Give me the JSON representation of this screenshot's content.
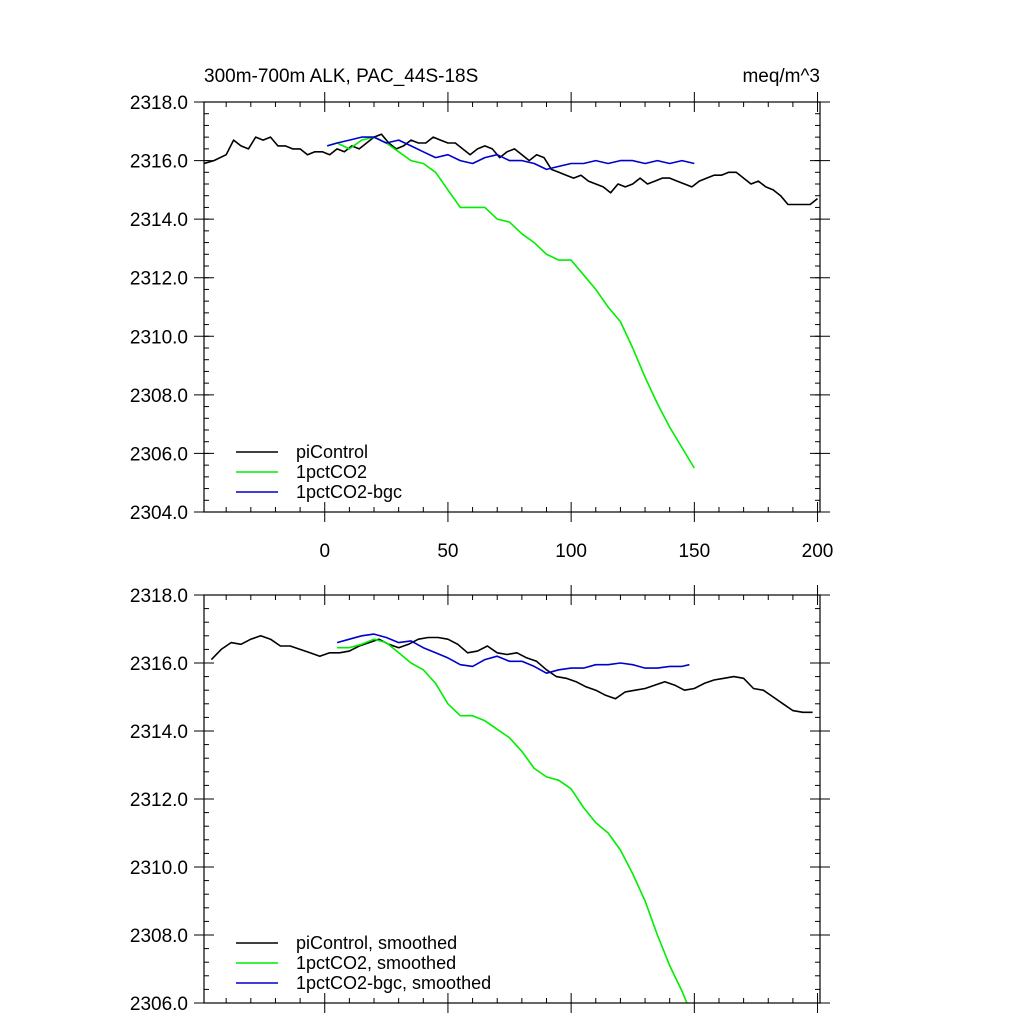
{
  "header": {
    "title": "300m-700m ALK, PAC_44S-18S",
    "units": "meq/m^3"
  },
  "colors": {
    "piControl": "#000000",
    "1pctCO2": "#00ee00",
    "1pctCO2-bgc": "#0000cc"
  },
  "chart_data": [
    {
      "type": "line",
      "title": "300m-700m ALK, PAC_44S-18S",
      "units": "meq/m^3",
      "xlim": [
        -49,
        201
      ],
      "ylim": [
        2304.0,
        2318.0
      ],
      "x_ticks": [
        0,
        50,
        100,
        150,
        200
      ],
      "y_ticks": [
        "2304.0",
        "2306.0",
        "2308.0",
        "2310.0",
        "2312.0",
        "2314.0",
        "2316.0",
        "2318.0"
      ],
      "x_tick_labels": [
        "0",
        "50",
        "100",
        "150",
        "200"
      ],
      "legend": [
        "piControl",
        "1pctCO2",
        "1pctCO2-bgc"
      ],
      "legend_position": "bottom-left",
      "series": [
        {
          "name": "piControl",
          "color": "#000000",
          "x": [
            -49,
            -45,
            -40,
            -37,
            -34,
            -31,
            -28,
            -25,
            -22,
            -19,
            -16,
            -13,
            -10,
            -7,
            -4,
            -1,
            2,
            5,
            8,
            11,
            14,
            17,
            20,
            23,
            26,
            29,
            32,
            35,
            38,
            41,
            44,
            47,
            50,
            53,
            56,
            59,
            62,
            65,
            68,
            71,
            74,
            77,
            80,
            83,
            86,
            89,
            92,
            95,
            98,
            101,
            104,
            107,
            110,
            113,
            116,
            119,
            122,
            125,
            128,
            131,
            134,
            137,
            140,
            143,
            146,
            149,
            152,
            155,
            158,
            161,
            164,
            167,
            170,
            173,
            176,
            179,
            182,
            185,
            188,
            191,
            194,
            197,
            200
          ],
          "y": [
            2315.9,
            2316.0,
            2316.2,
            2316.7,
            2316.5,
            2316.4,
            2316.8,
            2316.7,
            2316.8,
            2316.5,
            2316.5,
            2316.4,
            2316.4,
            2316.2,
            2316.3,
            2316.3,
            2316.2,
            2316.4,
            2316.3,
            2316.5,
            2316.4,
            2316.6,
            2316.8,
            2316.9,
            2316.6,
            2316.4,
            2316.5,
            2316.7,
            2316.6,
            2316.6,
            2316.8,
            2316.7,
            2316.6,
            2316.6,
            2316.4,
            2316.2,
            2316.4,
            2316.5,
            2316.4,
            2316.1,
            2316.3,
            2316.4,
            2316.2,
            2316.0,
            2316.2,
            2316.1,
            2315.7,
            2315.6,
            2315.5,
            2315.4,
            2315.5,
            2315.3,
            2315.2,
            2315.1,
            2314.9,
            2315.2,
            2315.1,
            2315.2,
            2315.4,
            2315.2,
            2315.3,
            2315.4,
            2315.4,
            2315.3,
            2315.2,
            2315.1,
            2315.3,
            2315.4,
            2315.5,
            2315.5,
            2315.6,
            2315.6,
            2315.4,
            2315.2,
            2315.3,
            2315.1,
            2315.0,
            2314.8,
            2314.5,
            2314.5,
            2314.5,
            2314.5,
            2314.7
          ]
        },
        {
          "name": "1pctCO2",
          "color": "#00ee00",
          "x": [
            1,
            5,
            10,
            15,
            20,
            25,
            30,
            35,
            40,
            45,
            50,
            55,
            60,
            65,
            70,
            75,
            80,
            85,
            90,
            95,
            100,
            105,
            110,
            115,
            120,
            125,
            130,
            135,
            140,
            145,
            150
          ],
          "y": [
            2316.5,
            2316.6,
            2316.4,
            2316.7,
            2316.8,
            2316.6,
            2316.3,
            2316.0,
            2315.9,
            2315.6,
            2315.0,
            2314.4,
            2314.4,
            2314.4,
            2314.0,
            2313.9,
            2313.5,
            2313.2,
            2312.8,
            2312.6,
            2312.6,
            2312.1,
            2311.6,
            2311.0,
            2310.5,
            2309.6,
            2308.6,
            2307.7,
            2306.9,
            2306.2,
            2305.5
          ]
        },
        {
          "name": "1pctCO2-bgc",
          "color": "#0000cc",
          "x": [
            1,
            5,
            10,
            15,
            20,
            25,
            30,
            35,
            40,
            45,
            50,
            55,
            60,
            65,
            70,
            75,
            80,
            85,
            90,
            95,
            100,
            105,
            110,
            115,
            120,
            125,
            130,
            135,
            140,
            145,
            150
          ],
          "y": [
            2316.5,
            2316.6,
            2316.7,
            2316.8,
            2316.8,
            2316.6,
            2316.7,
            2316.5,
            2316.3,
            2316.1,
            2316.2,
            2316.0,
            2315.9,
            2316.1,
            2316.2,
            2316.0,
            2316.0,
            2315.9,
            2315.7,
            2315.8,
            2315.9,
            2315.9,
            2316.0,
            2315.9,
            2316.0,
            2316.0,
            2315.9,
            2316.0,
            2315.9,
            2316.0,
            2315.9
          ]
        }
      ]
    },
    {
      "type": "line",
      "xlim": [
        -49,
        201
      ],
      "ylim": [
        2306.0,
        2318.0
      ],
      "x_ticks": [
        0,
        50,
        100,
        150,
        200
      ],
      "y_ticks": [
        "2306.0",
        "2308.0",
        "2310.0",
        "2312.0",
        "2314.0",
        "2316.0",
        "2318.0"
      ],
      "legend": [
        "piControl, smoothed",
        "1pctCO2, smoothed",
        "1pctCO2-bgc, smoothed"
      ],
      "legend_position": "bottom-left",
      "series": [
        {
          "name": "piControl, smoothed",
          "color": "#000000",
          "x": [
            -46,
            -42,
            -38,
            -34,
            -30,
            -26,
            -22,
            -18,
            -14,
            -10,
            -6,
            -2,
            2,
            6,
            10,
            14,
            18,
            22,
            26,
            30,
            34,
            38,
            42,
            46,
            50,
            54,
            58,
            62,
            66,
            70,
            74,
            78,
            82,
            86,
            90,
            94,
            98,
            102,
            106,
            110,
            114,
            118,
            122,
            126,
            130,
            134,
            138,
            142,
            146,
            150,
            154,
            158,
            162,
            166,
            170,
            174,
            178,
            182,
            186,
            190,
            194,
            198
          ],
          "y": [
            2316.1,
            2316.4,
            2316.6,
            2316.55,
            2316.7,
            2316.8,
            2316.7,
            2316.5,
            2316.5,
            2316.4,
            2316.3,
            2316.2,
            2316.3,
            2316.3,
            2316.35,
            2316.5,
            2316.6,
            2316.7,
            2316.55,
            2316.45,
            2316.55,
            2316.7,
            2316.75,
            2316.75,
            2316.7,
            2316.55,
            2316.3,
            2316.35,
            2316.5,
            2316.3,
            2316.25,
            2316.3,
            2316.15,
            2316.05,
            2315.8,
            2315.6,
            2315.55,
            2315.45,
            2315.3,
            2315.2,
            2315.05,
            2314.95,
            2315.15,
            2315.2,
            2315.25,
            2315.35,
            2315.45,
            2315.35,
            2315.2,
            2315.25,
            2315.4,
            2315.5,
            2315.55,
            2315.6,
            2315.55,
            2315.25,
            2315.2,
            2315.0,
            2314.8,
            2314.6,
            2314.55,
            2314.55
          ]
        },
        {
          "name": "1pctCO2, smoothed",
          "color": "#00ee00",
          "x": [
            5,
            10,
            15,
            20,
            25,
            30,
            35,
            40,
            45,
            50,
            55,
            60,
            65,
            70,
            75,
            80,
            85,
            90,
            95,
            100,
            105,
            110,
            115,
            120,
            125,
            130,
            135,
            140,
            145,
            147
          ],
          "y": [
            2316.45,
            2316.45,
            2316.55,
            2316.7,
            2316.6,
            2316.3,
            2316.0,
            2315.8,
            2315.4,
            2314.8,
            2314.45,
            2314.45,
            2314.3,
            2314.05,
            2313.8,
            2313.4,
            2312.9,
            2312.65,
            2312.55,
            2312.3,
            2311.75,
            2311.3,
            2311.0,
            2310.5,
            2309.8,
            2309.0,
            2308.0,
            2307.1,
            2306.35,
            2306.0
          ]
        },
        {
          "name": "1pctCO2-bgc, smoothed",
          "color": "#0000cc",
          "x": [
            5,
            10,
            15,
            20,
            25,
            30,
            35,
            40,
            45,
            50,
            55,
            60,
            65,
            70,
            75,
            80,
            85,
            90,
            95,
            100,
            105,
            110,
            115,
            120,
            125,
            130,
            135,
            140,
            145,
            148
          ],
          "y": [
            2316.6,
            2316.7,
            2316.8,
            2316.85,
            2316.75,
            2316.6,
            2316.65,
            2316.45,
            2316.3,
            2316.15,
            2315.95,
            2315.9,
            2316.1,
            2316.2,
            2316.05,
            2316.05,
            2315.9,
            2315.7,
            2315.8,
            2315.85,
            2315.85,
            2315.95,
            2315.95,
            2316.0,
            2315.95,
            2315.85,
            2315.85,
            2315.9,
            2315.9,
            2315.95
          ]
        }
      ]
    }
  ]
}
